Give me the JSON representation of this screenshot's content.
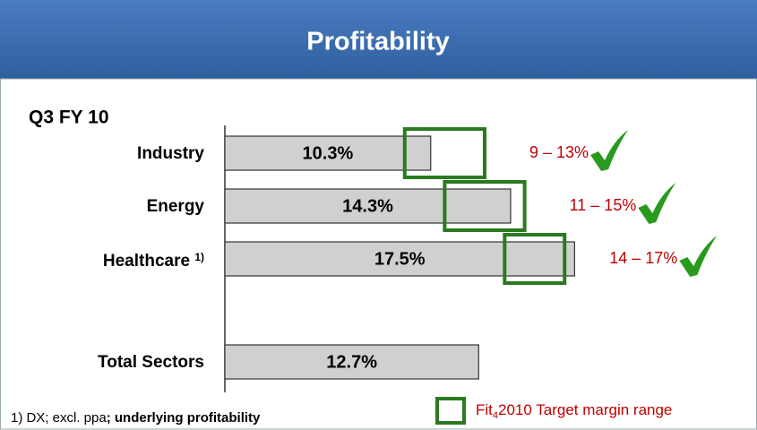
{
  "title": "Profitability",
  "chart_data": {
    "type": "bar",
    "orientation": "horizontal",
    "subtitle": "Q3 FY 10",
    "categories": [
      "Industry",
      "Energy",
      "Healthcare",
      "Total Sectors"
    ],
    "category_notes": [
      null,
      null,
      "1)",
      null
    ],
    "values": [
      10.3,
      14.3,
      17.5,
      12.7
    ],
    "value_labels": [
      "10.3%",
      "14.3%",
      "17.5%",
      "12.7%"
    ],
    "color": "#d0d0d0",
    "xlim": [
      0,
      26
    ],
    "target_ranges": [
      {
        "low": 9,
        "high": 13,
        "label": "9 – 13%"
      },
      {
        "low": 11,
        "high": 15,
        "label": "11 – 15%"
      },
      {
        "low": 14,
        "high": 17,
        "label": "14 – 17%"
      },
      null
    ],
    "target_color": "#2a7a1f",
    "target_label_color": "#c00000",
    "legend": {
      "prefix": "Fit",
      "subscript": "4",
      "suffix": "2010 Target margin range"
    },
    "footnote": {
      "plain": "1) DX; excl. ppa",
      "bold": "; underlying profitability"
    }
  }
}
